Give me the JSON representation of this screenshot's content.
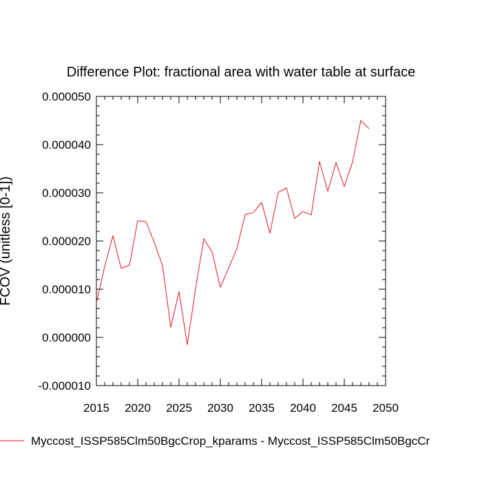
{
  "chart_data": {
    "type": "line",
    "title": "Difference Plot: fractional area with water table at surface",
    "xlabel": "",
    "ylabel": "FCOV  (unitless [0-1])",
    "xlim": [
      2015,
      2050
    ],
    "ylim": [
      -1e-05,
      5e-05
    ],
    "x_ticks": [
      2015,
      2020,
      2025,
      2030,
      2035,
      2040,
      2045,
      2050
    ],
    "x_tick_labels": [
      "2015",
      "2020",
      "2025",
      "2030",
      "2035",
      "2040",
      "2045",
      "2050"
    ],
    "y_ticks": [
      -1e-05,
      0,
      1e-05,
      2e-05,
      3e-05,
      4e-05,
      5e-05
    ],
    "y_tick_labels": [
      "-0.000010",
      "0.000000",
      "0.000010",
      "0.000020",
      "0.000030",
      "0.000040",
      "0.000050"
    ],
    "grid": false,
    "legend_position": "bottom-left",
    "series": [
      {
        "name": "Myccost_ISSP585Clm50BgcCrop_kparams - Myccost_ISSP585Clm50BgcCr",
        "color": "#e8141e",
        "x": [
          2015,
          2016,
          2017,
          2018,
          2019,
          2020,
          2021,
          2022,
          2023,
          2024,
          2025,
          2026,
          2027,
          2028,
          2029,
          2030,
          2031,
          2032,
          2033,
          2034,
          2035,
          2036,
          2037,
          2038,
          2039,
          2040,
          2041,
          2042,
          2043,
          2044,
          2045,
          2046,
          2047,
          2048
        ],
        "values": [
          7.2e-06,
          1.47e-05,
          2.11e-05,
          1.43e-05,
          1.5e-05,
          2.42e-05,
          2.4e-05,
          1.97e-05,
          1.49e-05,
          2.1e-06,
          9.5e-06,
          -1.5e-06,
          1.01e-05,
          2.05e-05,
          1.77e-05,
          1.04e-05,
          1.44e-05,
          1.84e-05,
          2.55e-05,
          2.59e-05,
          2.8e-05,
          2.16e-05,
          3.01e-05,
          3.1e-05,
          2.47e-05,
          2.61e-05,
          2.54e-05,
          3.65e-05,
          3.03e-05,
          3.63e-05,
          3.13e-05,
          3.64e-05,
          4.5e-05,
          4.33e-05
        ]
      }
    ]
  }
}
